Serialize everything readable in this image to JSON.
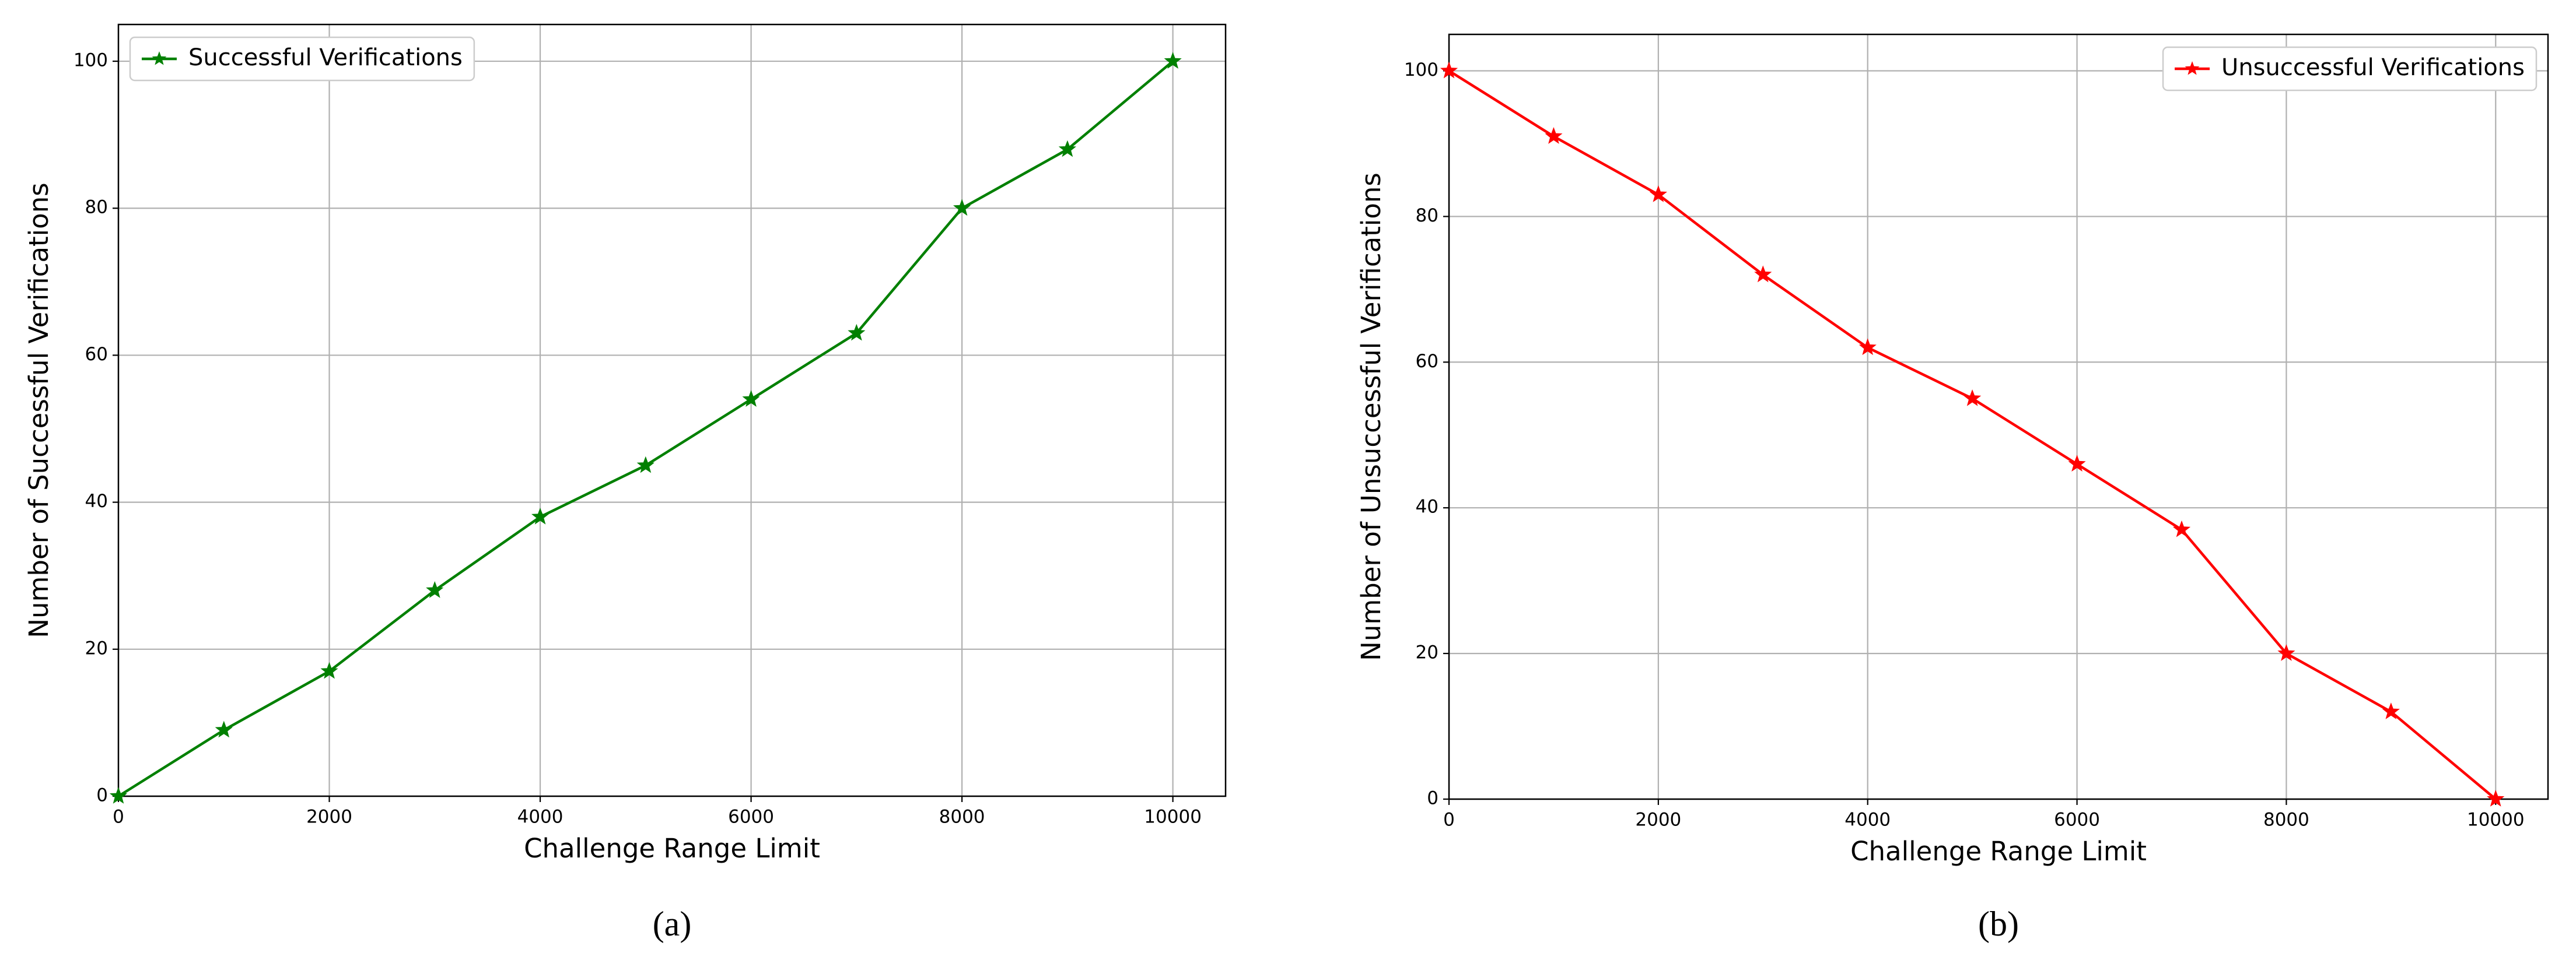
{
  "chart_data": [
    {
      "type": "line",
      "caption": "(a)",
      "xlabel": "Challenge Range Limit",
      "ylabel": "Number of Successful Verifications",
      "x": [
        0,
        1000,
        2000,
        3000,
        4000,
        5000,
        6000,
        7000,
        8000,
        9000,
        10000
      ],
      "series": [
        {
          "name": "Successful Verifications",
          "color": "#008000",
          "values": [
            0,
            9,
            17,
            28,
            38,
            45,
            54,
            63,
            80,
            88,
            100
          ]
        }
      ],
      "xlim": [
        0,
        10500
      ],
      "ylim": [
        0,
        105
      ],
      "xticks": [
        0,
        2000,
        4000,
        6000,
        8000,
        10000
      ],
      "yticks": [
        0,
        20,
        40,
        60,
        80,
        100
      ],
      "grid": true,
      "legend": "upper left"
    },
    {
      "type": "line",
      "caption": "(b)",
      "xlabel": "Challenge Range Limit",
      "ylabel": "Number of Unsuccessful Verifications",
      "x": [
        0,
        1000,
        2000,
        3000,
        4000,
        5000,
        6000,
        7000,
        8000,
        9000,
        10000
      ],
      "series": [
        {
          "name": "Unsuccessful Verifications",
          "color": "#ff0000",
          "values": [
            100,
            91,
            83,
            72,
            62,
            55,
            46,
            37,
            20,
            12,
            0
          ]
        }
      ],
      "xlim": [
        0,
        10500
      ],
      "ylim": [
        0,
        105
      ],
      "xticks": [
        0,
        2000,
        4000,
        6000,
        8000,
        10000
      ],
      "yticks": [
        0,
        20,
        40,
        60,
        80,
        100
      ],
      "grid": true,
      "legend": "upper right"
    }
  ]
}
